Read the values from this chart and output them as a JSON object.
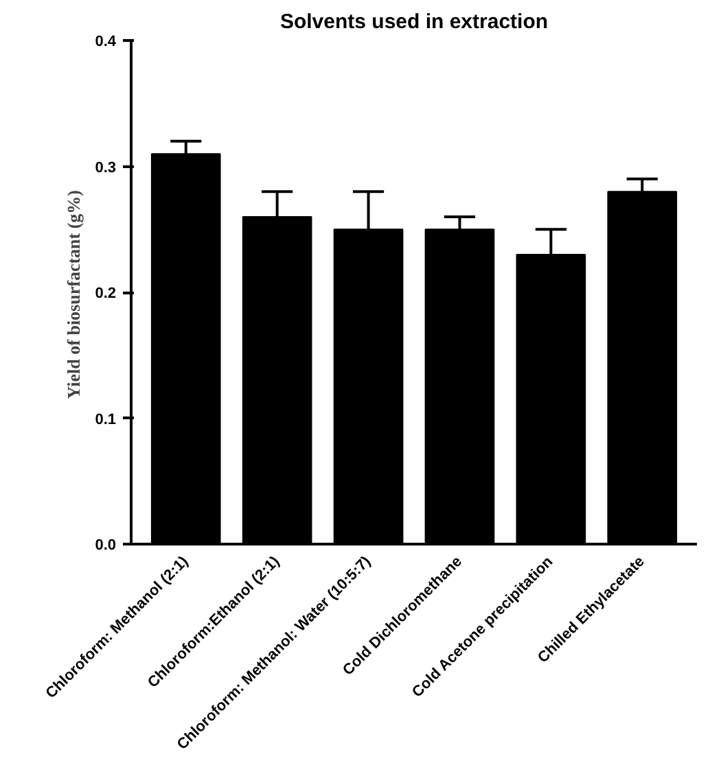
{
  "chart_data": {
    "type": "bar",
    "title": "Solvents used in extraction",
    "ylabel": "Yield of biosurfactant  (g%)",
    "categories": [
      "Chloroform: Methanol (2:1)",
      "Chloroform:Ethanol (2:1)",
      "Chloroform: Methanol: Water (10:5:7)",
      "Cold Dichloromethane",
      "Cold Acetone precipitation",
      "Chilled Ethylacetate"
    ],
    "values": [
      0.31,
      0.26,
      0.25,
      0.25,
      0.23,
      0.28
    ],
    "errors": [
      [
        0.31,
        0.32
      ],
      [
        0.26,
        0.28
      ],
      [
        0.25,
        0.28
      ],
      [
        0.25,
        0.26
      ],
      [
        0.23,
        0.25
      ],
      [
        0.28,
        0.29
      ]
    ],
    "color": "#000000",
    "ylim": [
      0,
      0.4
    ],
    "yticks": [
      {
        "value": 0,
        "label": "0.0"
      },
      0.1,
      0.2,
      0.3,
      0.4
    ],
    "grid": false
  }
}
